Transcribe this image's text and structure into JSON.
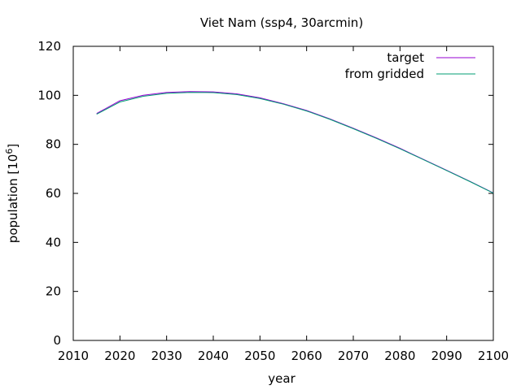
{
  "chart_data": {
    "type": "line",
    "title": "Viet Nam (ssp4, 30arcmin)",
    "xlabel": "year",
    "ylabel_prefix": "population [10",
    "ylabel_exp": "6",
    "ylabel_suffix": "]",
    "xlim": [
      2010,
      2100
    ],
    "ylim": [
      0,
      120
    ],
    "xticks": [
      2010,
      2020,
      2030,
      2040,
      2050,
      2060,
      2070,
      2080,
      2090,
      2100
    ],
    "yticks": [
      0,
      20,
      40,
      60,
      80,
      100,
      120
    ],
    "grid": false,
    "legend_position": "top-right",
    "x": [
      2015,
      2020,
      2025,
      2030,
      2035,
      2040,
      2045,
      2050,
      2055,
      2060,
      2065,
      2070,
      2075,
      2080,
      2085,
      2090,
      2095,
      2100
    ],
    "series": [
      {
        "name": "target",
        "color": "#9400d3",
        "values": [
          92.6,
          97.8,
          100.0,
          101.2,
          101.5,
          101.4,
          100.6,
          99.0,
          96.6,
          93.8,
          90.4,
          86.6,
          82.6,
          78.4,
          73.9,
          69.4,
          64.9,
          60.2
        ]
      },
      {
        "name": "from gridded",
        "color": "#009e73",
        "values": [
          92.3,
          97.3,
          99.6,
          100.8,
          101.2,
          101.1,
          100.3,
          98.7,
          96.4,
          93.6,
          90.2,
          86.4,
          82.4,
          78.2,
          73.8,
          69.3,
          64.8,
          60.1
        ]
      }
    ]
  }
}
